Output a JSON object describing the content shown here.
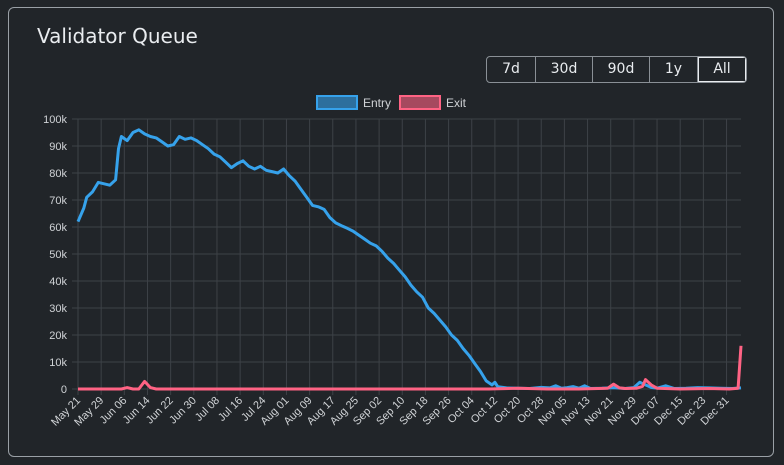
{
  "card": {
    "title": "Validator Queue"
  },
  "ranges": [
    "7d",
    "30d",
    "90d",
    "1y",
    "All"
  ],
  "active_range": "All",
  "colors": {
    "entry": "#36a2eb",
    "exit": "#ff6384",
    "grid": "#3d4247",
    "text": "#d0d3d6"
  },
  "chart_data": {
    "type": "line",
    "title": "",
    "xlabel": "",
    "ylabel": "",
    "ylim": [
      0,
      100000
    ],
    "yticks": [
      0,
      10000,
      20000,
      30000,
      40000,
      50000,
      60000,
      70000,
      80000,
      90000,
      100000
    ],
    "ytick_labels": [
      "0",
      "10k",
      "20k",
      "30k",
      "40k",
      "50k",
      "60k",
      "70k",
      "80k",
      "90k",
      "100k"
    ],
    "xticks": [
      "May 21",
      "May 29",
      "Jun 06",
      "Jun 14",
      "Jun 22",
      "Jun 30",
      "Jul 08",
      "Jul 16",
      "Jul 24",
      "Aug 01",
      "Aug 09",
      "Aug 17",
      "Aug 25",
      "Sep 02",
      "Sep 10",
      "Sep 18",
      "Sep 26",
      "Oct 04",
      "Oct 12",
      "Oct 20",
      "Oct 28",
      "Nov 05",
      "Nov 13",
      "Nov 21",
      "Nov 29",
      "Dec 07",
      "Dec 15",
      "Dec 23",
      "Dec 31"
    ],
    "grid": true,
    "legend": "top",
    "series": [
      {
        "name": "Entry",
        "color": "#36a2eb",
        "points": [
          [
            "May 21",
            62000
          ],
          [
            "May 23",
            67000
          ],
          [
            "May 24",
            71000
          ],
          [
            "May 26",
            73000
          ],
          [
            "May 28",
            76500
          ],
          [
            "May 30",
            76000
          ],
          [
            "Jun 01",
            75500
          ],
          [
            "Jun 03",
            77500
          ],
          [
            "Jun 04",
            89000
          ],
          [
            "Jun 05",
            93500
          ],
          [
            "Jun 07",
            92000
          ],
          [
            "Jun 09",
            95000
          ],
          [
            "Jun 11",
            96000
          ],
          [
            "Jun 13",
            94500
          ],
          [
            "Jun 15",
            93500
          ],
          [
            "Jun 17",
            93000
          ],
          [
            "Jun 19",
            91500
          ],
          [
            "Jun 21",
            90000
          ],
          [
            "Jun 23",
            90500
          ],
          [
            "Jun 25",
            93500
          ],
          [
            "Jun 27",
            92500
          ],
          [
            "Jun 29",
            93000
          ],
          [
            "Jul 01",
            92000
          ],
          [
            "Jul 03",
            90500
          ],
          [
            "Jul 05",
            89000
          ],
          [
            "Jul 07",
            87000
          ],
          [
            "Jul 09",
            86000
          ],
          [
            "Jul 11",
            84000
          ],
          [
            "Jul 13",
            82000
          ],
          [
            "Jul 15",
            83500
          ],
          [
            "Jul 17",
            84500
          ],
          [
            "Jul 19",
            82500
          ],
          [
            "Jul 21",
            81500
          ],
          [
            "Jul 23",
            82500
          ],
          [
            "Jul 25",
            81000
          ],
          [
            "Jul 27",
            80500
          ],
          [
            "Jul 29",
            80000
          ],
          [
            "Jul 31",
            81500
          ],
          [
            "Aug 02",
            79000
          ],
          [
            "Aug 04",
            77000
          ],
          [
            "Aug 06",
            74000
          ],
          [
            "Aug 08",
            71000
          ],
          [
            "Aug 10",
            68000
          ],
          [
            "Aug 12",
            67500
          ],
          [
            "Aug 14",
            66500
          ],
          [
            "Aug 16",
            63500
          ],
          [
            "Aug 18",
            61500
          ],
          [
            "Aug 20",
            60500
          ],
          [
            "Aug 22",
            59500
          ],
          [
            "Aug 24",
            58500
          ],
          [
            "Aug 26",
            57000
          ],
          [
            "Aug 28",
            55500
          ],
          [
            "Aug 30",
            54000
          ],
          [
            "Sep 01",
            53000
          ],
          [
            "Sep 03",
            51000
          ],
          [
            "Sep 05",
            48500
          ],
          [
            "Sep 07",
            46500
          ],
          [
            "Sep 09",
            44000
          ],
          [
            "Sep 11",
            41500
          ],
          [
            "Sep 13",
            38500
          ],
          [
            "Sep 15",
            36000
          ],
          [
            "Sep 17",
            34000
          ],
          [
            "Sep 19",
            30000
          ],
          [
            "Sep 21",
            28000
          ],
          [
            "Sep 23",
            25500
          ],
          [
            "Sep 25",
            23000
          ],
          [
            "Sep 27",
            20000
          ],
          [
            "Sep 29",
            18000
          ],
          [
            "Oct 01",
            15000
          ],
          [
            "Oct 03",
            12500
          ],
          [
            "Oct 05",
            9500
          ],
          [
            "Oct 07",
            6500
          ],
          [
            "Oct 09",
            3000
          ],
          [
            "Oct 11",
            1500
          ],
          [
            "Oct 12",
            2500
          ],
          [
            "Oct 13",
            800
          ],
          [
            "Oct 16",
            400
          ],
          [
            "Oct 20",
            300
          ],
          [
            "Oct 24",
            200
          ],
          [
            "Oct 28",
            600
          ],
          [
            "Oct 31",
            400
          ],
          [
            "Nov 02",
            1200
          ],
          [
            "Nov 04",
            300
          ],
          [
            "Nov 06",
            500
          ],
          [
            "Nov 08",
            900
          ],
          [
            "Nov 10",
            300
          ],
          [
            "Nov 12",
            1200
          ],
          [
            "Nov 14",
            200
          ],
          [
            "Nov 18",
            300
          ],
          [
            "Nov 22",
            500
          ],
          [
            "Nov 26",
            200
          ],
          [
            "Nov 29",
            500
          ],
          [
            "Dec 01",
            2500
          ],
          [
            "Dec 03",
            1500
          ],
          [
            "Dec 05",
            600
          ],
          [
            "Dec 07",
            300
          ],
          [
            "Dec 10",
            1200
          ],
          [
            "Dec 13",
            200
          ],
          [
            "Dec 17",
            300
          ],
          [
            "Dec 21",
            500
          ],
          [
            "Dec 25",
            400
          ],
          [
            "Dec 29",
            300
          ],
          [
            "Jan 02",
            200
          ],
          [
            "Jan 05",
            400
          ]
        ]
      },
      {
        "name": "Exit",
        "color": "#ff6384",
        "points": [
          [
            "May 21",
            0
          ],
          [
            "May 30",
            0
          ],
          [
            "Jun 05",
            0
          ],
          [
            "Jun 07",
            500
          ],
          [
            "Jun 09",
            0
          ],
          [
            "Jun 11",
            0
          ],
          [
            "Jun 13",
            2800
          ],
          [
            "Jun 15",
            500
          ],
          [
            "Jun 17",
            0
          ],
          [
            "Jun 30",
            0
          ],
          [
            "Jul 15",
            0
          ],
          [
            "Aug 01",
            0
          ],
          [
            "Aug 15",
            0
          ],
          [
            "Sep 01",
            0
          ],
          [
            "Sep 15",
            0
          ],
          [
            "Oct 01",
            0
          ],
          [
            "Oct 10",
            0
          ],
          [
            "Oct 20",
            300
          ],
          [
            "Oct 30",
            0
          ],
          [
            "Nov 10",
            0
          ],
          [
            "Nov 20",
            300
          ],
          [
            "Nov 22",
            1800
          ],
          [
            "Nov 24",
            400
          ],
          [
            "Nov 26",
            200
          ],
          [
            "Nov 30",
            300
          ],
          [
            "Dec 02",
            1000
          ],
          [
            "Dec 03",
            3500
          ],
          [
            "Dec 05",
            1500
          ],
          [
            "Dec 07",
            300
          ],
          [
            "Dec 15",
            0
          ],
          [
            "Dec 25",
            200
          ],
          [
            "Jan 01",
            0
          ],
          [
            "Jan 04",
            300
          ],
          [
            "Jan 05",
            16000
          ]
        ]
      }
    ]
  }
}
